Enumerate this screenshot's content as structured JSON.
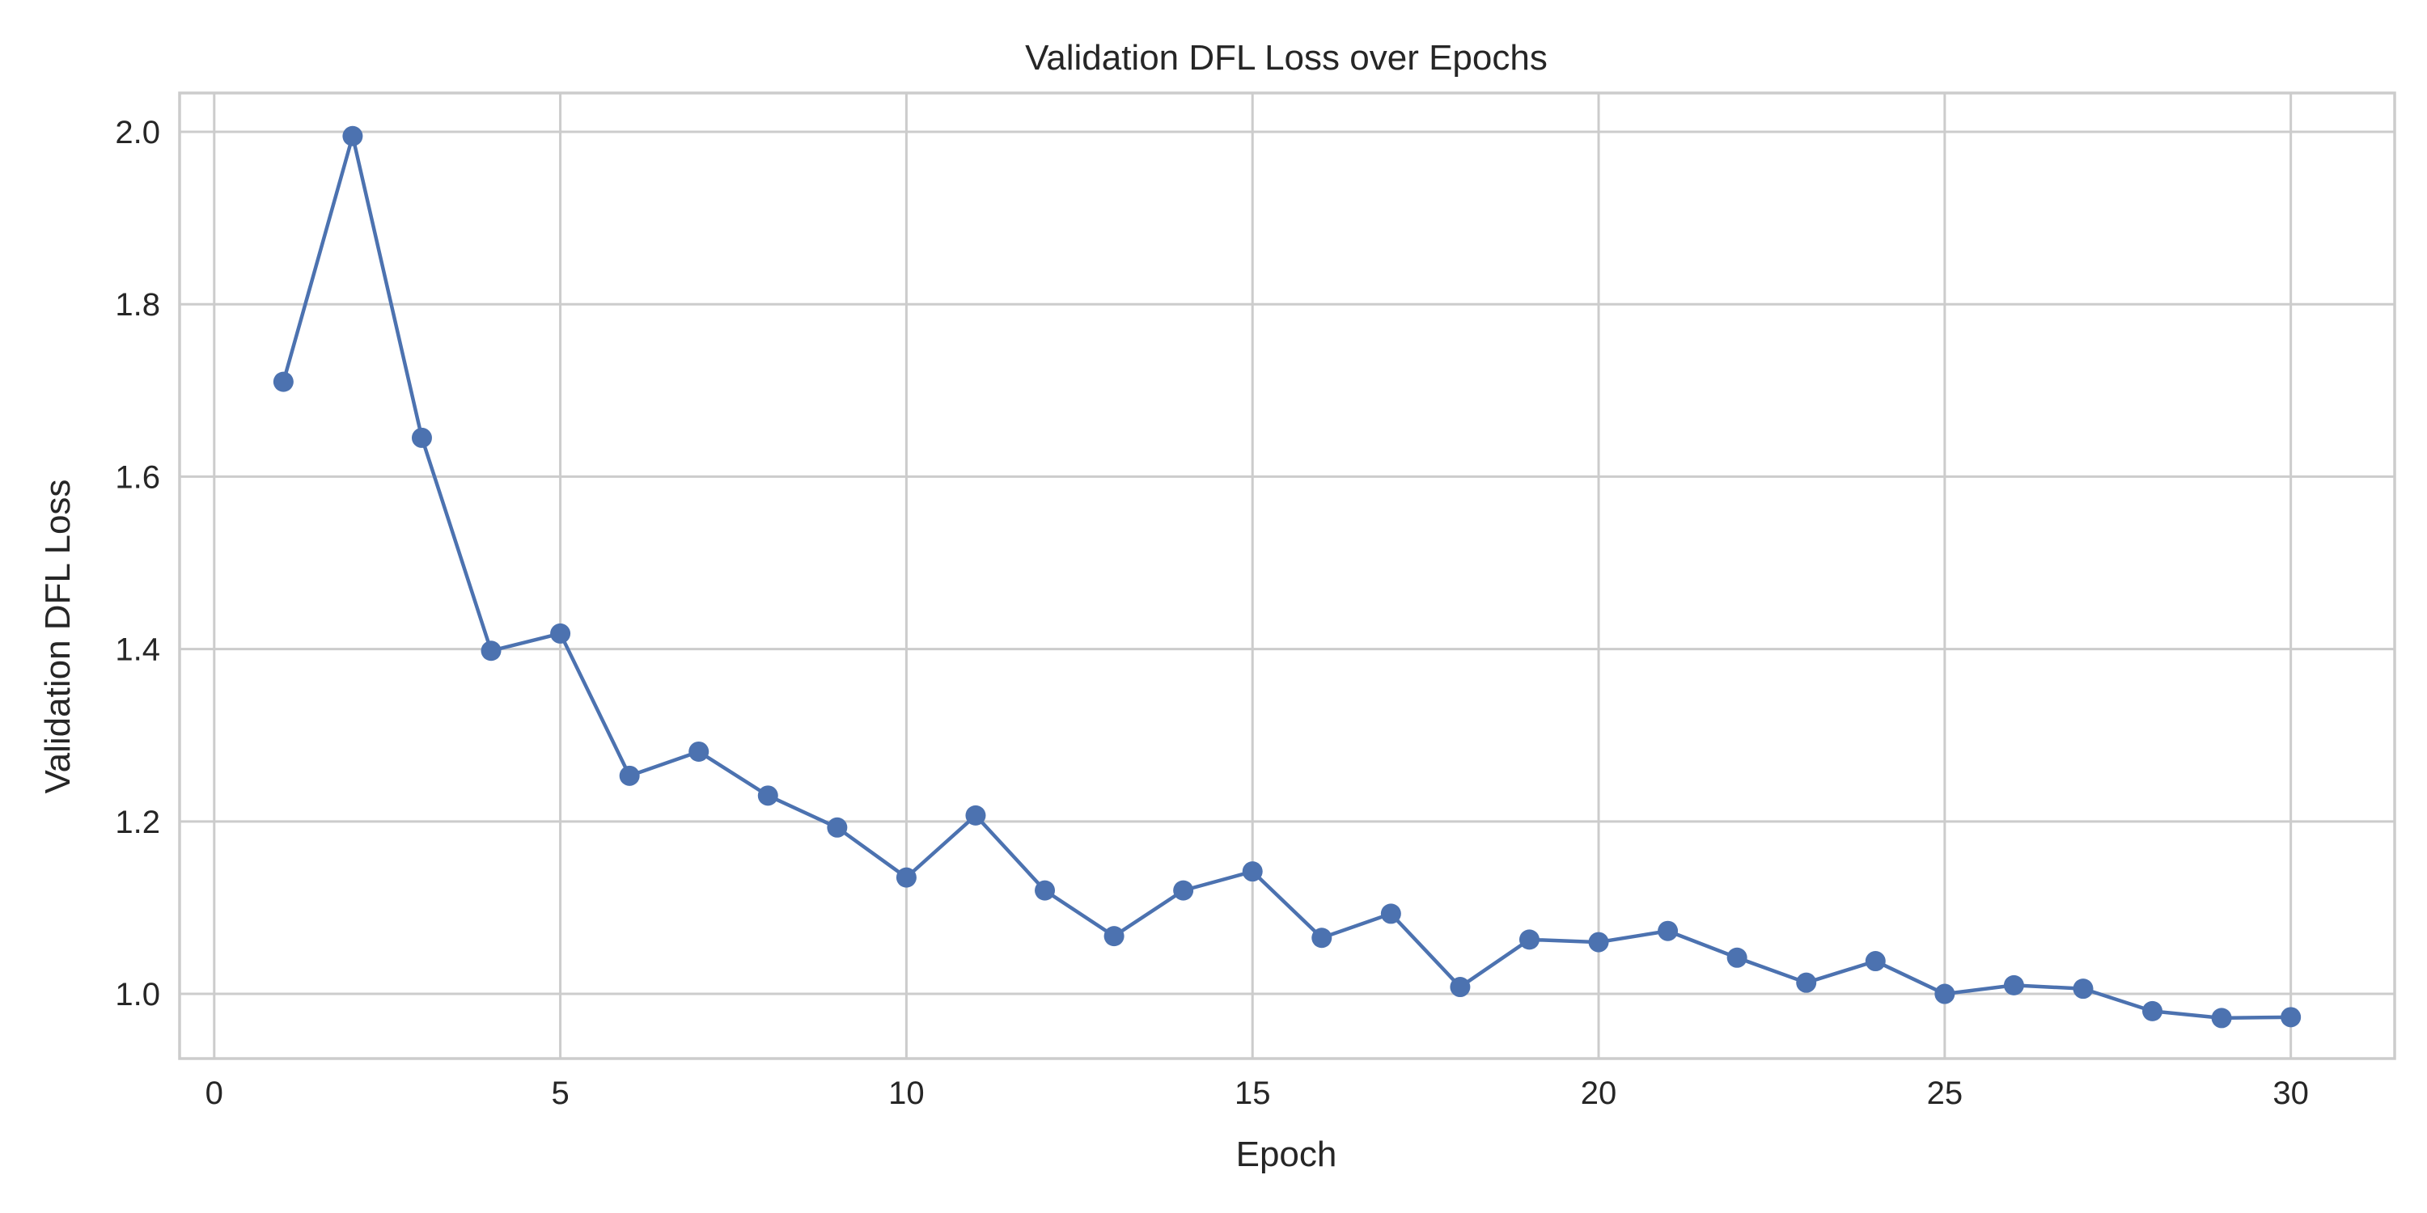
{
  "chart_data": {
    "type": "line",
    "title": "Validation DFL Loss over Epochs",
    "xlabel": "Epoch",
    "ylabel": "Validation DFL Loss",
    "xlim": [
      -0.5,
      31.5
    ],
    "ylim": [
      0.925,
      2.045
    ],
    "xticks": [
      0,
      5,
      10,
      15,
      20,
      25,
      30
    ],
    "xtick_labels": [
      "0",
      "5",
      "10",
      "15",
      "20",
      "25",
      "30"
    ],
    "yticks": [
      1.0,
      1.2,
      1.4,
      1.6,
      1.8,
      2.0
    ],
    "ytick_labels": [
      "1.0",
      "1.2",
      "1.4",
      "1.6",
      "1.8",
      "2.0"
    ],
    "grid": true,
    "series": [
      {
        "name": "Validation DFL Loss",
        "color": "#4c72b0",
        "marker": "circle",
        "x": [
          1,
          2,
          3,
          4,
          5,
          6,
          7,
          8,
          9,
          10,
          11,
          12,
          13,
          14,
          15,
          16,
          17,
          18,
          19,
          20,
          21,
          22,
          23,
          24,
          25,
          26,
          27,
          28,
          29,
          30
        ],
        "y": [
          1.71,
          1.995,
          1.645,
          1.398,
          1.418,
          1.253,
          1.281,
          1.23,
          1.193,
          1.135,
          1.207,
          1.12,
          1.067,
          1.12,
          1.142,
          1.065,
          1.093,
          1.008,
          1.063,
          1.06,
          1.073,
          1.042,
          1.013,
          1.038,
          1.0,
          1.01,
          1.006,
          0.98,
          0.972,
          0.973
        ]
      }
    ]
  },
  "colors": {
    "grid": "#cccccc",
    "axes_edge": "#cccccc",
    "text": "#262626",
    "line": "#4c72b0"
  }
}
